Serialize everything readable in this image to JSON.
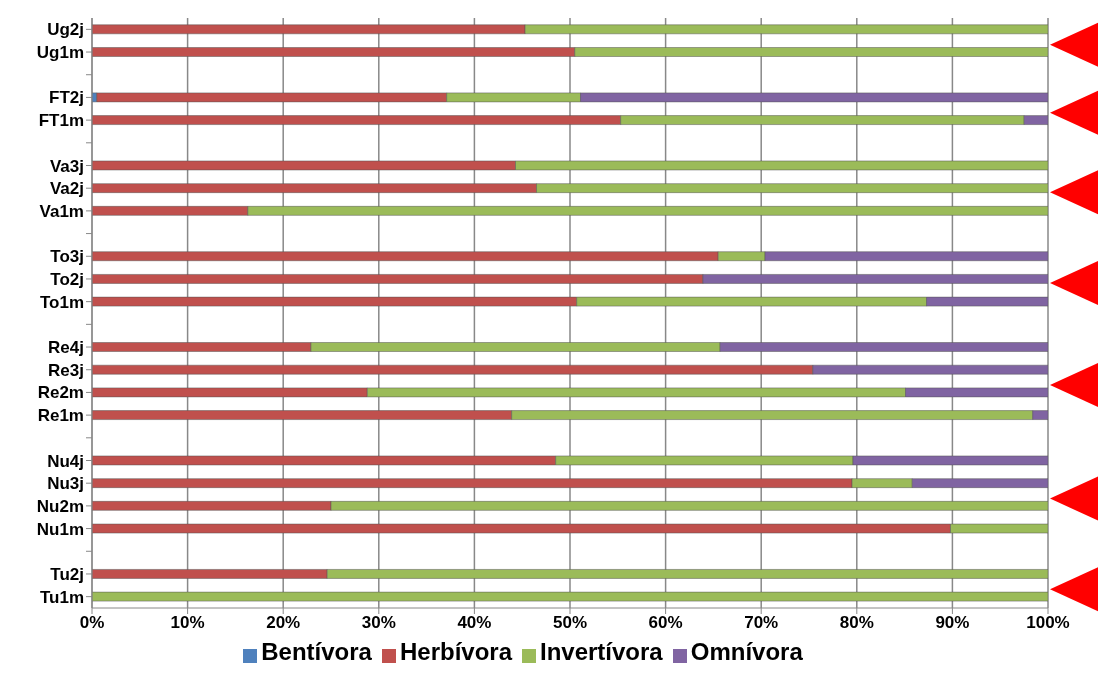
{
  "chart_data": {
    "type": "bar",
    "orientation": "horizontal",
    "stacked": true,
    "categories": [
      "Ug2j",
      "Ug1m",
      null,
      "FT2j",
      "FT1m",
      null,
      "Va3j",
      "Va2j",
      "Va1m",
      null,
      "To3j",
      "To2j",
      "To1m",
      null,
      "Re4j",
      "Re3j",
      "Re2m",
      "Re1m",
      null,
      "Nu4j",
      "Nu3j",
      "Nu2m",
      "Nu1m",
      null,
      "Tu2j",
      "Tu1m"
    ],
    "series": [
      {
        "name": "Bentívora",
        "color": "#4f81bd",
        "values": [
          0,
          0,
          null,
          0.5,
          0,
          null,
          0,
          0,
          0,
          null,
          0,
          0,
          0,
          null,
          0,
          0,
          0,
          0,
          null,
          0,
          0,
          0,
          0,
          null,
          0,
          0
        ]
      },
      {
        "name": "Herbívora",
        "color": "#c0504d",
        "values": [
          45.3,
          50.5,
          null,
          36.6,
          55.3,
          null,
          44.3,
          46.5,
          16.3,
          null,
          65.5,
          63.9,
          50.7,
          null,
          22.9,
          75.4,
          28.8,
          43.9,
          null,
          48.5,
          79.5,
          25.0,
          89.8,
          null,
          24.6,
          0
        ]
      },
      {
        "name": "Invertívora",
        "color": "#9bbb59",
        "values": [
          54.7,
          49.5,
          null,
          14.0,
          42.2,
          null,
          55.7,
          53.5,
          83.7,
          null,
          4.9,
          0,
          36.6,
          null,
          42.8,
          0,
          56.3,
          54.5,
          null,
          31.1,
          6.3,
          75.0,
          10.2,
          null,
          75.4,
          100
        ]
      },
      {
        "name": "Omnívora",
        "color": "#8064a2",
        "values": [
          0,
          0,
          null,
          48.9,
          2.5,
          null,
          0,
          0,
          0,
          null,
          29.6,
          36.1,
          12.7,
          null,
          34.3,
          24.6,
          14.9,
          1.6,
          null,
          20.4,
          14.2,
          0,
          0,
          null,
          0,
          0
        ]
      }
    ],
    "xlim": [
      0,
      100
    ],
    "xticks": [
      {
        "value": 0,
        "label": "0%"
      },
      {
        "value": 10,
        "label": "10%"
      },
      {
        "value": 20,
        "label": "20%"
      },
      {
        "value": 30,
        "label": "30%"
      },
      {
        "value": 40,
        "label": "40%"
      },
      {
        "value": 50,
        "label": "50%"
      },
      {
        "value": 60,
        "label": "60%"
      },
      {
        "value": 70,
        "label": "70%"
      },
      {
        "value": 80,
        "label": "80%"
      },
      {
        "value": 90,
        "label": "90%"
      },
      {
        "value": 100,
        "label": "100%"
      }
    ],
    "grid": "x",
    "legend": "bottom"
  }
}
